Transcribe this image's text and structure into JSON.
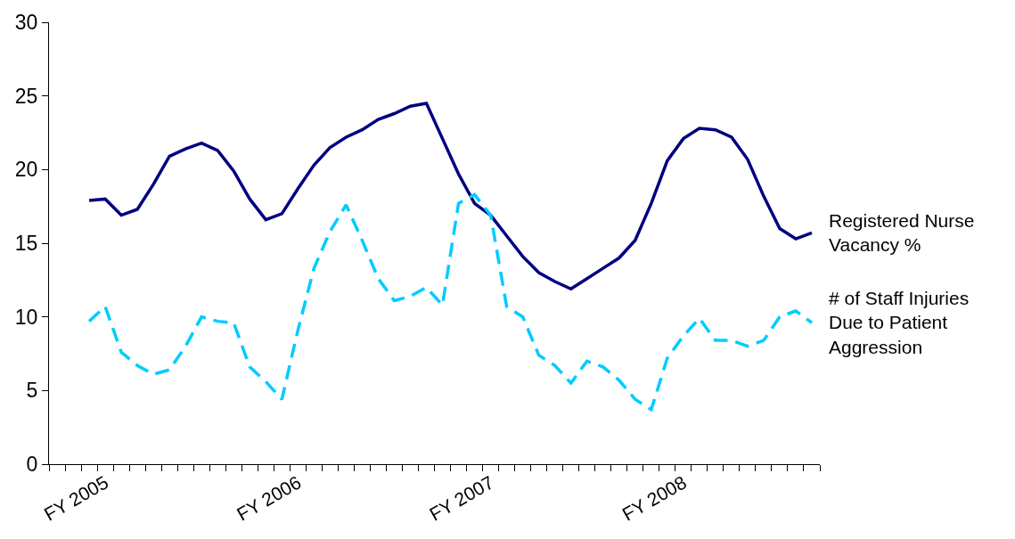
{
  "chart_data": {
    "type": "line",
    "categories": [
      null,
      null,
      null,
      "FY 2005",
      null,
      null,
      null,
      null,
      null,
      null,
      null,
      null,
      null,
      null,
      null,
      "FY 2006",
      null,
      null,
      null,
      null,
      null,
      null,
      null,
      null,
      null,
      null,
      null,
      "FY 2007",
      null,
      null,
      null,
      null,
      null,
      null,
      null,
      null,
      null,
      null,
      null,
      "FY 2008",
      null,
      null,
      null,
      null,
      null,
      null,
      null,
      null
    ],
    "series": [
      {
        "name": "Registered Nurse Vacancy %",
        "color": "#000080",
        "line_style": "solid",
        "values": [
          null,
          null,
          17.9,
          18.0,
          16.9,
          17.3,
          19.0,
          20.9,
          21.4,
          21.8,
          21.3,
          19.9,
          18.0,
          16.6,
          17.0,
          18.7,
          20.3,
          21.5,
          22.2,
          22.7,
          23.4,
          23.8,
          24.3,
          24.5,
          22.1,
          19.7,
          17.7,
          16.9,
          15.5,
          14.1,
          13.0,
          12.4,
          11.9,
          12.6,
          13.3,
          14.0,
          15.2,
          17.7,
          20.6,
          22.1,
          22.8,
          22.7,
          22.2,
          20.7,
          18.2,
          16.0,
          15.3,
          15.7
        ]
      },
      {
        "name": "# of Staff Injuries Due to Patient Aggression",
        "color": "#00ccff",
        "line_style": "dashed",
        "values": [
          null,
          null,
          9.7,
          10.7,
          7.6,
          6.7,
          6.1,
          6.4,
          8.0,
          10.0,
          9.7,
          9.6,
          6.6,
          5.6,
          4.4,
          9.1,
          13.3,
          15.8,
          17.6,
          15.2,
          12.6,
          11.1,
          11.4,
          12.0,
          10.8,
          17.7,
          18.3,
          16.9,
          10.7,
          10.0,
          7.4,
          6.7,
          5.5,
          7.0,
          6.6,
          5.7,
          4.4,
          3.7,
          7.2,
          8.7,
          9.9,
          8.4,
          8.4,
          8.0,
          8.4,
          10.0,
          10.4,
          9.6
        ]
      }
    ],
    "ylim": [
      0,
      30
    ],
    "yticks": [
      0,
      5,
      10,
      15,
      20,
      25,
      30
    ],
    "legend": false
  }
}
